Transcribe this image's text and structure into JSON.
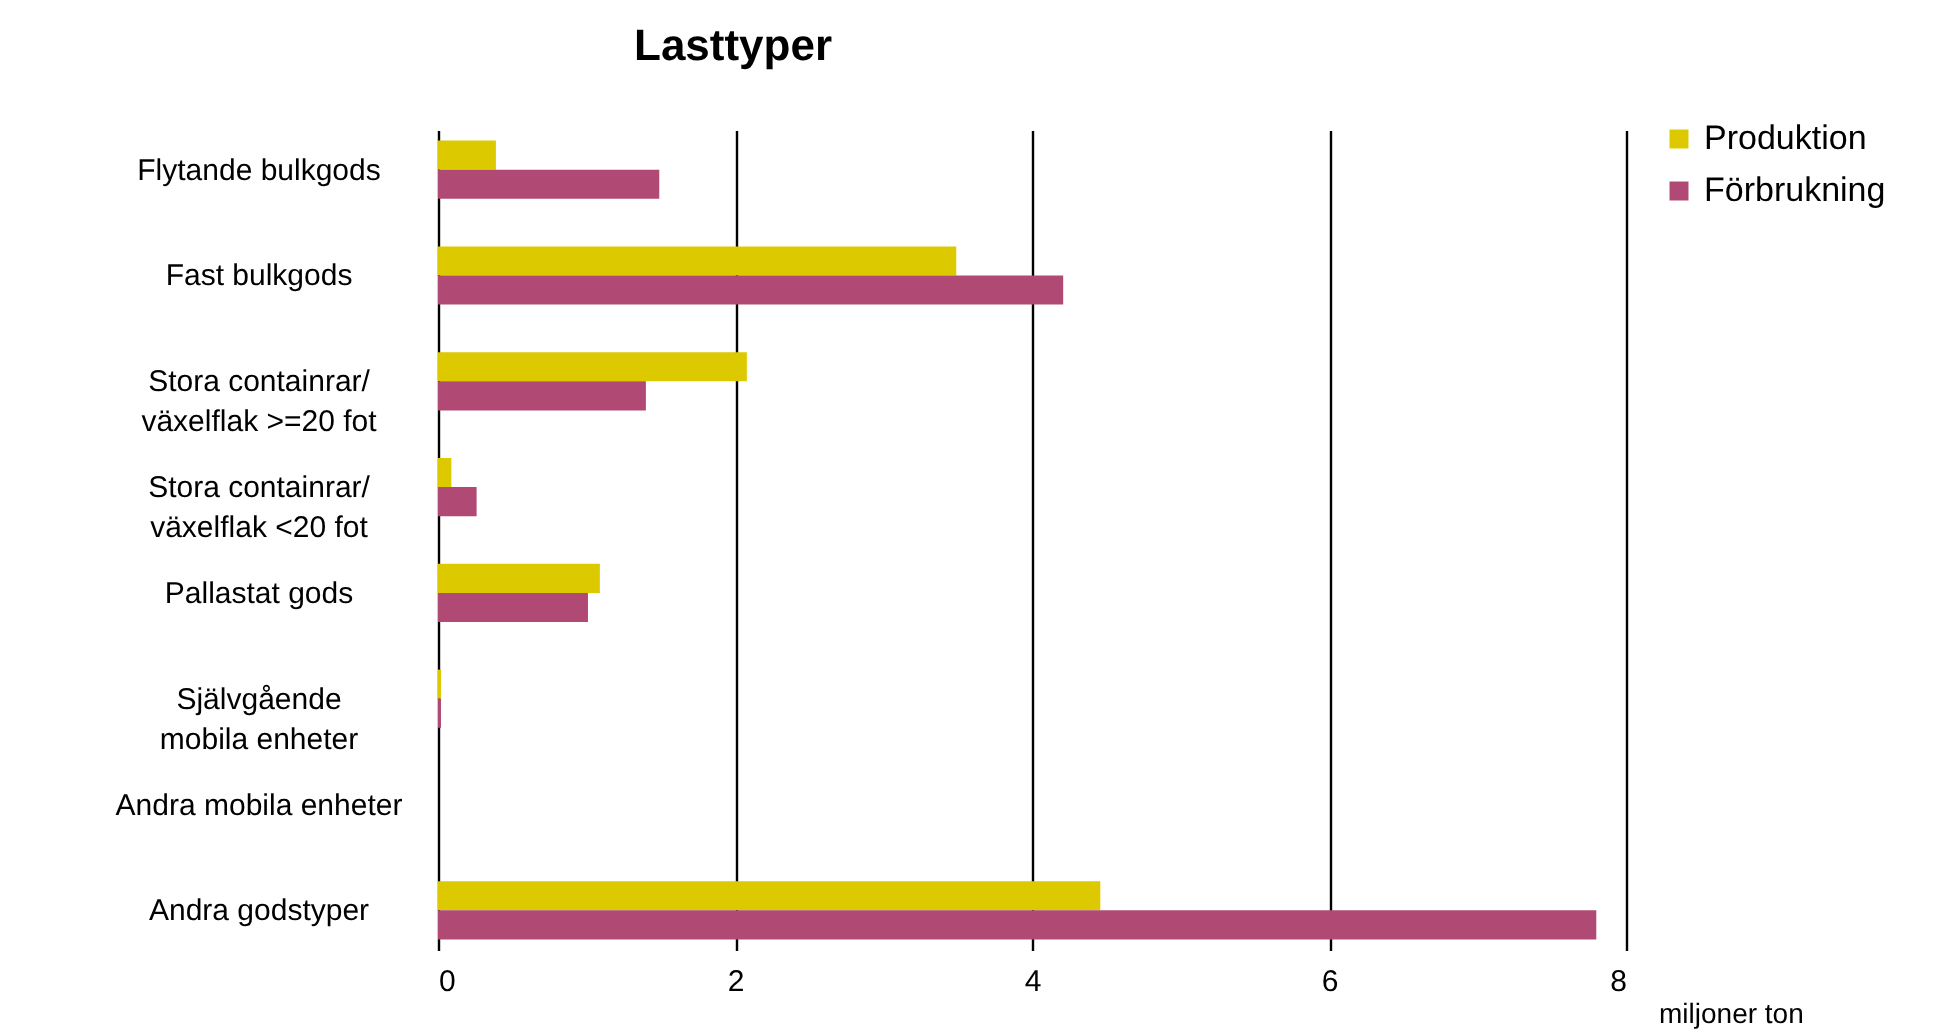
{
  "chart_data": {
    "type": "bar",
    "orientation": "horizontal",
    "title": "Lasttyper",
    "xlabel": "miljoner ton",
    "categories": [
      "Flytande bulkgods",
      "Fast bulkgods",
      "Stora containrar/\nväxelflak >=20 fot",
      "Stora containrar/\nväxelflak <20 fot",
      "Pallastat gods",
      "Självgående\nmobila enheter",
      "Andra mobila enheter",
      "Andra godstyper"
    ],
    "series": [
      {
        "name": "Produktion",
        "color": "#ddc900",
        "values": [
          0.39,
          3.49,
          2.08,
          0.09,
          1.09,
          0.02,
          0,
          4.46
        ]
      },
      {
        "name": "Förbrukning",
        "color": "#b04a74",
        "values": [
          1.49,
          4.21,
          1.4,
          0.26,
          1.01,
          0.02,
          0,
          7.8
        ]
      }
    ],
    "xlim": [
      0,
      8
    ],
    "xticks": [
      0,
      2,
      4,
      6,
      8
    ],
    "grid": "x",
    "legend": "top right"
  }
}
